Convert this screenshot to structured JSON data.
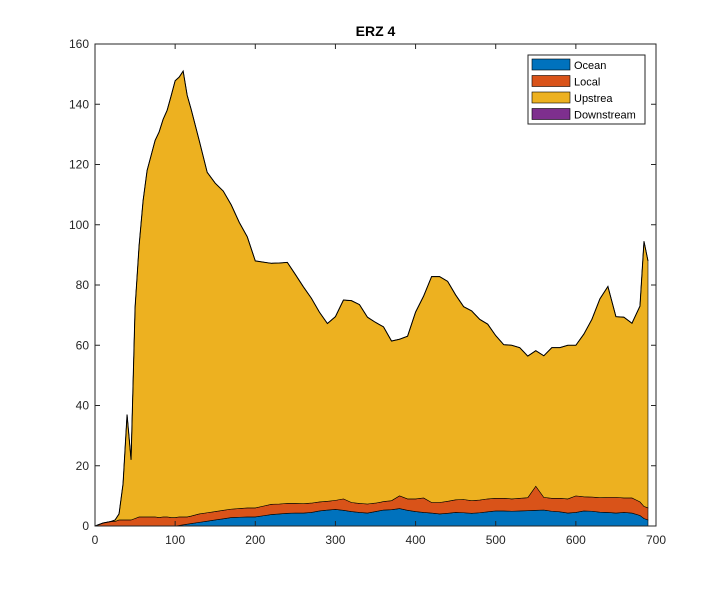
{
  "chart_data": {
    "type": "area",
    "title": "ERZ 4",
    "xlabel": "",
    "ylabel": "",
    "xlim": [
      0,
      700
    ],
    "ylim": [
      0,
      160
    ],
    "xticks": [
      0,
      100,
      200,
      300,
      400,
      500,
      600,
      700
    ],
    "yticks": [
      0,
      20,
      40,
      60,
      80,
      100,
      120,
      140,
      160
    ],
    "x_tick_labels": [
      "0",
      "100",
      "200",
      "300",
      "400",
      "500",
      "600",
      "700"
    ],
    "y_tick_labels": [
      "0",
      "20",
      "40",
      "60",
      "80",
      "100",
      "120",
      "140",
      "160"
    ],
    "grid": false,
    "stacked": true,
    "legend_position": "top-right",
    "x": [
      0,
      10,
      20,
      25,
      30,
      35,
      40,
      45,
      50,
      55,
      60,
      65,
      70,
      75,
      80,
      85,
      90,
      95,
      100,
      105,
      110,
      115,
      120,
      130,
      140,
      150,
      160,
      170,
      180,
      190,
      200,
      210,
      220,
      230,
      240,
      250,
      260,
      270,
      280,
      290,
      300,
      310,
      320,
      330,
      340,
      350,
      360,
      370,
      380,
      390,
      400,
      410,
      420,
      430,
      440,
      450,
      460,
      470,
      480,
      490,
      500,
      510,
      520,
      530,
      540,
      550,
      560,
      570,
      580,
      590,
      600,
      610,
      620,
      630,
      640,
      650,
      660,
      670,
      680,
      685,
      690
    ],
    "series": [
      {
        "name": "Ocean",
        "color": "#0072bd",
        "values": [
          0,
          0,
          0,
          0,
          0,
          0,
          0,
          0,
          0,
          0,
          0,
          0,
          0,
          0,
          0,
          0,
          0,
          0,
          0,
          0.2,
          0.4,
          0.6,
          0.8,
          1.2,
          1.6,
          2,
          2.4,
          2.8,
          2.9,
          3,
          3,
          3.4,
          3.8,
          4,
          4.2,
          4.3,
          4.3,
          4.5,
          5,
          5.3,
          5.5,
          5.2,
          4.8,
          4.5,
          4.3,
          4.8,
          5.3,
          5.4,
          5.8,
          5.2,
          4.8,
          4.5,
          4.3,
          4,
          4.2,
          4.5,
          4.4,
          4.2,
          4.4,
          4.7,
          5,
          5,
          4.9,
          5,
          5.1,
          5.2,
          5.3,
          4.9,
          4.7,
          4.3,
          4.5,
          5,
          4.9,
          4.6,
          4.5,
          4.3,
          4.5,
          4.3,
          3.5,
          2.5,
          2
        ]
      },
      {
        "name": "Local",
        "color": "#d95319",
        "values": [
          0,
          1,
          1.5,
          1.5,
          2,
          2,
          2,
          2,
          2.5,
          3,
          3,
          3,
          3,
          3,
          2.8,
          3,
          3,
          2.8,
          2.8,
          2.8,
          2.6,
          2.4,
          2.5,
          2.8,
          2.8,
          2.8,
          2.8,
          2.8,
          2.9,
          3,
          3,
          3.2,
          3.4,
          3.3,
          3.3,
          3.2,
          3.1,
          3.1,
          3,
          2.9,
          3,
          3.8,
          3,
          3,
          3,
          2.8,
          2.8,
          3,
          4.2,
          3.8,
          4.2,
          4.8,
          3.5,
          3.8,
          4,
          4.2,
          4.4,
          4.2,
          4.2,
          4.3,
          4.2,
          4.2,
          4.1,
          4.2,
          4.3,
          8,
          4.2,
          4.3,
          4.5,
          4.7,
          5.5,
          4.7,
          4.7,
          4.8,
          5,
          5.2,
          4.8,
          5,
          4.5,
          4,
          4
        ]
      },
      {
        "name": "Upstrea",
        "color": "#edb120",
        "values": [
          0,
          0,
          0,
          0.5,
          2,
          12,
          35,
          20,
          70,
          90,
          105,
          115,
          120,
          125,
          128,
          132,
          135,
          140,
          145,
          146,
          148,
          140,
          135,
          124,
          113,
          109,
          106,
          101,
          95,
          90,
          82,
          81,
          80,
          80,
          80,
          76,
          72,
          68,
          63,
          59,
          61,
          66,
          67,
          66,
          62,
          60,
          58,
          53,
          52,
          54,
          62,
          67,
          75,
          75,
          73,
          68,
          64,
          63,
          60,
          58,
          54,
          51,
          51,
          50,
          47,
          45,
          47,
          50,
          50,
          51,
          50,
          54,
          59,
          66,
          70,
          60,
          60,
          58,
          65,
          88,
          82
        ]
      },
      {
        "name": "Downstream",
        "color": "#7e2f8e",
        "values": [
          0,
          0,
          0,
          0,
          0,
          0,
          0,
          0,
          0,
          0,
          0,
          0,
          0,
          0,
          0,
          0,
          0,
          0,
          0,
          0,
          0,
          0,
          0,
          0,
          0,
          0,
          0,
          0,
          0,
          0,
          0,
          0,
          0,
          0,
          0,
          0,
          0,
          0,
          0,
          0,
          0,
          0,
          0,
          0,
          0,
          0,
          0,
          0,
          0,
          0,
          0,
          0,
          0,
          0,
          0,
          0,
          0,
          0,
          0,
          0,
          0,
          0,
          0,
          0,
          0,
          0,
          0,
          0,
          0,
          0,
          0,
          0,
          0,
          0,
          0,
          0,
          0,
          0,
          0,
          0,
          0
        ]
      }
    ]
  }
}
